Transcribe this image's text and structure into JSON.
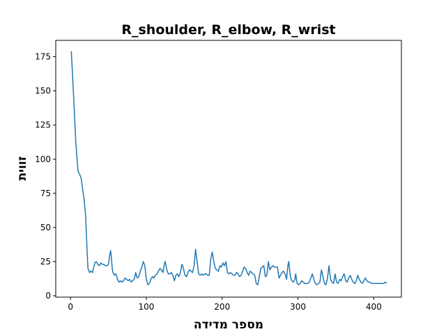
{
  "chart_data": {
    "type": "line",
    "title": "R_shoulder, R_elbow, R_wrist",
    "xlabel": "מספר מדידה",
    "ylabel": "זווית",
    "xlim": [
      -19.5,
      436.5
    ],
    "ylim": [
      -1,
      187
    ],
    "xticks": [
      0,
      100,
      200,
      300,
      400
    ],
    "yticks": [
      0,
      25,
      50,
      75,
      100,
      125,
      150,
      175
    ],
    "grid": false,
    "series": [
      {
        "color": "#1f77b4",
        "points": [
          [
            1,
            179
          ],
          [
            3,
            158
          ],
          [
            5,
            135
          ],
          [
            7,
            112
          ],
          [
            9,
            97
          ],
          [
            10,
            91
          ],
          [
            12,
            89
          ],
          [
            14,
            86
          ],
          [
            16,
            78
          ],
          [
            18,
            70
          ],
          [
            20,
            58
          ],
          [
            21,
            44
          ],
          [
            22,
            31
          ],
          [
            23,
            20
          ],
          [
            25,
            17
          ],
          [
            27,
            18
          ],
          [
            29,
            17
          ],
          [
            32,
            24
          ],
          [
            34,
            25
          ],
          [
            36,
            23
          ],
          [
            38,
            22
          ],
          [
            40,
            24
          ],
          [
            42,
            23
          ],
          [
            44,
            23
          ],
          [
            46,
            22
          ],
          [
            48,
            22
          ],
          [
            50,
            23
          ],
          [
            52,
            31
          ],
          [
            53,
            33
          ],
          [
            54,
            27
          ],
          [
            55,
            20
          ],
          [
            56,
            17
          ],
          [
            58,
            15
          ],
          [
            60,
            16
          ],
          [
            62,
            12
          ],
          [
            64,
            10
          ],
          [
            66,
            11
          ],
          [
            68,
            10
          ],
          [
            70,
            11
          ],
          [
            72,
            13
          ],
          [
            74,
            12
          ],
          [
            76,
            11
          ],
          [
            78,
            12
          ],
          [
            80,
            10
          ],
          [
            82,
            11
          ],
          [
            84,
            12
          ],
          [
            86,
            17
          ],
          [
            88,
            13
          ],
          [
            90,
            14
          ],
          [
            92,
            18
          ],
          [
            94,
            21
          ],
          [
            96,
            25
          ],
          [
            98,
            22
          ],
          [
            100,
            12
          ],
          [
            102,
            8
          ],
          [
            104,
            9
          ],
          [
            106,
            12
          ],
          [
            108,
            14
          ],
          [
            110,
            13
          ],
          [
            112,
            15
          ],
          [
            114,
            16
          ],
          [
            116,
            18
          ],
          [
            118,
            20
          ],
          [
            120,
            19
          ],
          [
            122,
            17
          ],
          [
            124,
            24
          ],
          [
            125,
            25
          ],
          [
            127,
            19
          ],
          [
            129,
            16
          ],
          [
            131,
            16
          ],
          [
            133,
            17
          ],
          [
            135,
            15
          ],
          [
            137,
            11
          ],
          [
            139,
            15
          ],
          [
            141,
            16
          ],
          [
            143,
            14
          ],
          [
            145,
            17
          ],
          [
            147,
            23
          ],
          [
            149,
            20
          ],
          [
            151,
            15
          ],
          [
            153,
            14
          ],
          [
            155,
            17
          ],
          [
            157,
            19
          ],
          [
            159,
            18
          ],
          [
            161,
            17
          ],
          [
            163,
            22
          ],
          [
            165,
            34
          ],
          [
            167,
            25
          ],
          [
            169,
            16
          ],
          [
            171,
            15
          ],
          [
            173,
            16
          ],
          [
            175,
            15
          ],
          [
            177,
            16
          ],
          [
            179,
            16
          ],
          [
            181,
            15
          ],
          [
            183,
            15
          ],
          [
            185,
            27
          ],
          [
            187,
            32
          ],
          [
            189,
            25
          ],
          [
            191,
            20
          ],
          [
            193,
            19
          ],
          [
            195,
            18
          ],
          [
            197,
            22
          ],
          [
            199,
            21
          ],
          [
            201,
            24
          ],
          [
            203,
            22
          ],
          [
            205,
            25
          ],
          [
            207,
            17
          ],
          [
            209,
            16
          ],
          [
            211,
            17
          ],
          [
            213,
            16
          ],
          [
            215,
            15
          ],
          [
            217,
            15
          ],
          [
            219,
            17
          ],
          [
            221,
            16
          ],
          [
            223,
            14
          ],
          [
            225,
            15
          ],
          [
            227,
            18
          ],
          [
            229,
            21
          ],
          [
            231,
            20
          ],
          [
            233,
            17
          ],
          [
            235,
            15
          ],
          [
            237,
            18
          ],
          [
            239,
            17
          ],
          [
            241,
            16
          ],
          [
            243,
            15
          ],
          [
            245,
            9
          ],
          [
            247,
            8
          ],
          [
            249,
            14
          ],
          [
            251,
            20
          ],
          [
            253,
            21
          ],
          [
            255,
            22
          ],
          [
            257,
            14
          ],
          [
            259,
            15
          ],
          [
            261,
            25
          ],
          [
            263,
            19
          ],
          [
            265,
            21
          ],
          [
            267,
            22
          ],
          [
            269,
            21
          ],
          [
            271,
            21
          ],
          [
            273,
            21
          ],
          [
            275,
            13
          ],
          [
            277,
            15
          ],
          [
            279,
            17
          ],
          [
            281,
            18
          ],
          [
            283,
            16
          ],
          [
            285,
            12
          ],
          [
            287,
            23
          ],
          [
            288,
            25
          ],
          [
            290,
            14
          ],
          [
            292,
            11
          ],
          [
            294,
            10
          ],
          [
            296,
            12
          ],
          [
            297,
            16
          ],
          [
            299,
            9
          ],
          [
            301,
            8
          ],
          [
            303,
            9
          ],
          [
            305,
            11
          ],
          [
            307,
            10
          ],
          [
            309,
            9
          ],
          [
            311,
            9
          ],
          [
            313,
            9
          ],
          [
            315,
            10
          ],
          [
            317,
            13
          ],
          [
            319,
            16
          ],
          [
            321,
            12
          ],
          [
            323,
            9
          ],
          [
            325,
            8
          ],
          [
            327,
            9
          ],
          [
            329,
            10
          ],
          [
            331,
            19
          ],
          [
            333,
            14
          ],
          [
            335,
            9
          ],
          [
            337,
            8
          ],
          [
            339,
            13
          ],
          [
            341,
            22
          ],
          [
            343,
            12
          ],
          [
            345,
            10
          ],
          [
            347,
            9
          ],
          [
            349,
            16
          ],
          [
            351,
            10
          ],
          [
            353,
            9
          ],
          [
            355,
            12
          ],
          [
            357,
            11
          ],
          [
            359,
            14
          ],
          [
            361,
            16
          ],
          [
            363,
            11
          ],
          [
            365,
            10
          ],
          [
            367,
            13
          ],
          [
            369,
            15
          ],
          [
            371,
            12
          ],
          [
            373,
            10
          ],
          [
            375,
            9
          ],
          [
            377,
            11
          ],
          [
            379,
            15
          ],
          [
            381,
            12
          ],
          [
            383,
            10
          ],
          [
            385,
            9
          ],
          [
            387,
            11
          ],
          [
            389,
            13
          ],
          [
            391,
            11
          ],
          [
            393,
            10
          ],
          [
            395,
            10
          ],
          [
            397,
            9
          ],
          [
            400,
            9
          ],
          [
            405,
            9
          ],
          [
            410,
            9
          ],
          [
            413,
            9
          ],
          [
            415,
            10
          ],
          [
            417,
            9
          ]
        ]
      }
    ]
  }
}
